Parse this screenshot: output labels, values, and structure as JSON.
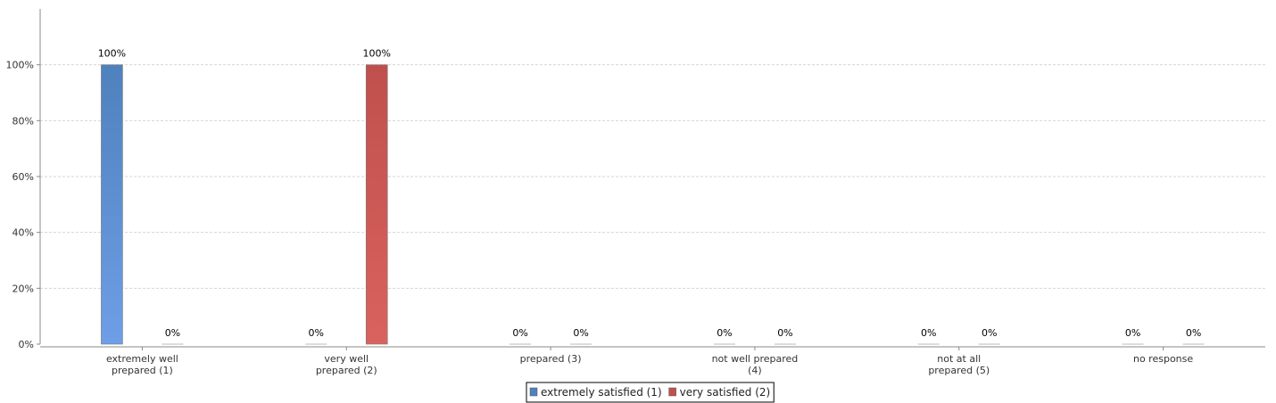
{
  "chart_data": {
    "type": "bar",
    "title": "",
    "xlabel": "",
    "ylabel": "",
    "ylim": [
      0,
      120
    ],
    "yticks": [
      "0%",
      "20%",
      "40%",
      "60%",
      "80%",
      "100%"
    ],
    "ytick_values": [
      0,
      20,
      40,
      60,
      80,
      100
    ],
    "grid": true,
    "legend_position": "bottom",
    "categories": [
      [
        "extremely well",
        "prepared (1)"
      ],
      [
        "very well",
        "prepared (2)"
      ],
      [
        "prepared (3)"
      ],
      [
        "not well prepared",
        "(4)"
      ],
      [
        "not at all",
        "prepared (5)"
      ],
      [
        "no response"
      ]
    ],
    "series": [
      {
        "name": "extremely satisfied (1)",
        "color": "#4f81bd",
        "color_light": "#6e9ee6",
        "values": [
          100,
          0,
          0,
          0,
          0,
          0
        ],
        "labels": [
          "100%",
          "0%",
          "0%",
          "0%",
          "0%",
          "0%"
        ]
      },
      {
        "name": "very satisfied (2)",
        "color": "#c0504d",
        "color_light": "#d9625e",
        "values": [
          0,
          100,
          0,
          0,
          0,
          0
        ],
        "labels": [
          "0%",
          "100%",
          "0%",
          "0%",
          "0%",
          "0%"
        ]
      }
    ]
  }
}
